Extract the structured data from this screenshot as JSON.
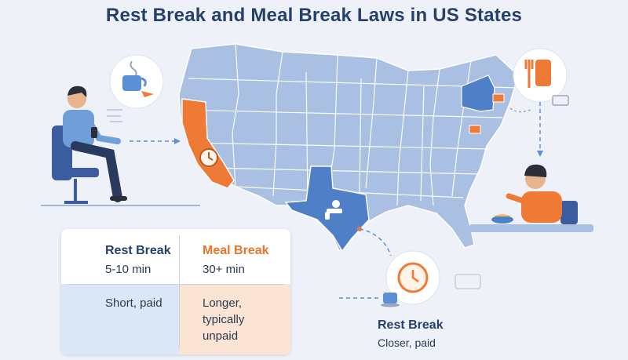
{
  "header": {
    "title": "Rest Break and Meal Break Laws in US States"
  },
  "comparison": {
    "rest": {
      "heading": "Rest Break",
      "duration": "5-10 min",
      "description": "Short, paid"
    },
    "meal": {
      "heading": "Meal Break",
      "duration": "30+ min",
      "description": "Longer, typically unpaid"
    }
  },
  "callout": {
    "heading": "Rest Break",
    "subtext": "Closer, paid"
  },
  "colors": {
    "navy": "#24406b",
    "orange": "#e8752c",
    "state_blue": "#a9c0e3",
    "state_dark_blue": "#4f7fc7",
    "state_orange": "#ee7a35"
  },
  "icons": [
    "coffee-cup-icon",
    "fork-knife-icon",
    "clock-icon",
    "desk-worker-icon",
    "eating-worker-icon"
  ]
}
